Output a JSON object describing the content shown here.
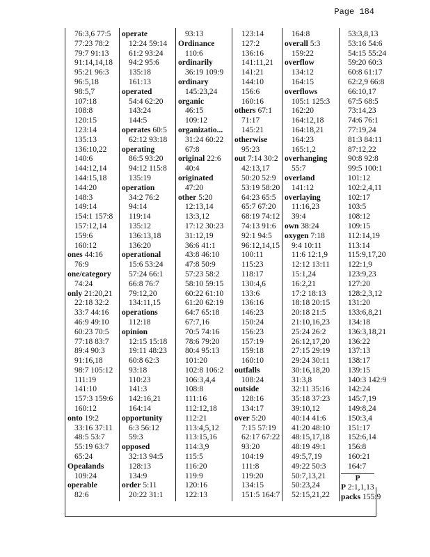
{
  "header": {
    "page": "Page 184"
  },
  "columns": [
    {
      "lines": [
        "76:3,6 77:5",
        "77:23 78:2",
        "79:7 91:13",
        "91:14,14,18",
        "95:21 96:3",
        "96:5,18",
        "98:5,7",
        "107:18",
        "108:8",
        "120:15",
        "123:14",
        "135:13",
        "136:10,22",
        "140:6",
        "144:12,14",
        "144:15,18",
        "144:20",
        "148:3",
        "149:14",
        "154:1 157:8",
        "157:12,14",
        "159:6",
        "160:12",
        {
          "term": "ones",
          "refs": "44:16"
        },
        "76:9",
        {
          "term": "one/category"
        },
        "74:24",
        {
          "term": "only",
          "refs": "21:20,21"
        },
        "22:18 32:2",
        "33:7 44:16",
        "46:9 49:10",
        "60:23 70:5",
        "77:18 83:7",
        "89:4 90:3",
        "91:16,18",
        "98:7 105:12",
        "111:19",
        "141:10",
        "157:3 159:6",
        "160:12",
        {
          "term": "onto",
          "refs": "19:2"
        },
        "33:16 37:11",
        "48:5 53:7",
        "55:19 63:7",
        "65:24",
        {
          "term": "Opealands"
        },
        "109:24",
        {
          "term": "operable"
        },
        "82:6"
      ]
    },
    {
      "lines": [
        {
          "term": "operate"
        },
        "12:24 59:14",
        "61:2 93:24",
        "94:2 95:6",
        "135:18",
        "161:13",
        {
          "term": "operated"
        },
        "54:4 62:20",
        "143:24",
        "144:5",
        {
          "term": "operates",
          "refs": "60:5"
        },
        "62:12 93:18",
        {
          "term": "operating"
        },
        "86:5 93:20",
        "94:12 115:8",
        "135:19",
        {
          "term": "operation"
        },
        "34:2 76:2",
        "94:14",
        "119:14",
        "135:12",
        "136:13,18",
        "136:20",
        {
          "term": "operational"
        },
        "15:6 53:24",
        "57:24 66:1",
        "66:8 76:7",
        "79:12,20",
        "134:11,15",
        {
          "term": "operations"
        },
        "112:18",
        {
          "term": "opinion"
        },
        "12:15 15:18",
        "19:11 48:23",
        "60:8 62:3",
        "93:18",
        "110:23",
        "141:3",
        "142:16,21",
        "164:14",
        {
          "term": "opportunity"
        },
        "6:3 56:12",
        "59:3",
        {
          "term": "opposed"
        },
        "32:13 94:5",
        "128:13",
        "134:9",
        {
          "term": "order",
          "refs": "5:11"
        },
        "20:22 31:1"
      ]
    },
    {
      "lines": [
        "93:13",
        {
          "term": "Ordinance"
        },
        "110:6",
        {
          "term": "ordinarily"
        },
        "36:19 109:9",
        {
          "term": "ordinary"
        },
        "145:23,24",
        {
          "term": "organic"
        },
        "46:15",
        "109:12",
        {
          "term": "organizatio..."
        },
        "31:24 60:22",
        "67:8",
        {
          "term": "original",
          "refs": "22:6"
        },
        "40:4",
        {
          "term": "originated"
        },
        "47:20",
        {
          "term": "other",
          "refs": "5:20"
        },
        "12:13,14",
        "13:3,12",
        "17:12 30:23",
        "31:12,19",
        "36:6 41:1",
        "43:8 46:10",
        "47:8 50:9",
        "57:23 58:2",
        "58:10 59:15",
        "60:22 61:10",
        "61:20 62:19",
        "64:7 65:18",
        "67:7,16",
        "70:5 74:16",
        "78:6 79:20",
        "80:4 95:13",
        "101:20",
        "102:8 106:2",
        "106:3,4,4",
        "108:8",
        "111:16",
        "112:12,18",
        "112:21",
        "113:4,5,12",
        "113:15,16",
        "114:3,9",
        "115:5",
        "116:20",
        "119:9",
        "120:16",
        "122:13"
      ]
    },
    {
      "lines": [
        "123:14",
        "127:2",
        "136:16",
        "141:11,21",
        "141:21",
        "144:10",
        "156:6",
        "160:16",
        {
          "term": "others",
          "refs": "67:1"
        },
        "71:17",
        "145:21",
        {
          "term": "otherwise"
        },
        "95:23",
        {
          "term": "out",
          "refs": "7:14 30:2"
        },
        "42:13,17",
        "50:20 52:9",
        "53:19 58:20",
        "64:23 65:5",
        "65:7 67:20",
        "68:19 74:12",
        "74:13 91:6",
        "92:1 94:5",
        "96:12,14,15",
        "100:11",
        "115:23",
        "118:17",
        "130:4,6",
        "133:6",
        "136:16",
        "146:23",
        "150:24",
        "156:23",
        "157:19",
        "159:18",
        "160:10",
        {
          "term": "outfalls"
        },
        "108:24",
        {
          "term": "outside"
        },
        "128:16",
        "134:17",
        {
          "term": "over",
          "refs": "5:20"
        },
        "7:15 57:19",
        "62:17 67:22",
        "93:20",
        "104:19",
        "111:8",
        "119:20",
        "134:15",
        "151:5 164:7"
      ]
    },
    {
      "lines": [
        "164:8",
        {
          "term": "overall",
          "refs": "5:3"
        },
        "159:22",
        {
          "term": "overflow"
        },
        "134:12",
        "164:15",
        {
          "term": "overflows"
        },
        "105:1 125:3",
        "162:20",
        "164:12,18",
        "164:18,21",
        "164:23",
        "165:1,2",
        {
          "term": "overhanging"
        },
        "55:7",
        {
          "term": "overland"
        },
        "141:12",
        {
          "term": "overlaying"
        },
        "11:16,23",
        "39:4",
        {
          "term": "own",
          "refs": "38:24"
        },
        {
          "term": "oxygen",
          "refs": "7:18"
        },
        "9:4 10:11",
        "11:6 12:1,9",
        "12:12 13:11",
        "15:1,24",
        "16:2,21",
        "17:2 18:13",
        "18:18 20:15",
        "20:18 21:5",
        "21:10,16,23",
        "25:24 26:2",
        "26:12,17,20",
        "27:15 29:19",
        "29:24 30:11",
        "30:16,18,20",
        "31:3,8",
        "32:11 35:16",
        "35:18 37:23",
        "39:10,12",
        "40:14 41:6",
        "41:20 48:10",
        "48:15,17,18",
        "48:19 49:1",
        "49:5,7,19",
        "49:22 50:3",
        "50:7,13,21",
        "50:23,24",
        "52:15,21,22"
      ]
    },
    {
      "lines": [
        "53:3,8,13",
        "53:16 54:6",
        "54:15 55:24",
        "59:20 60:3",
        "60:8 61:17",
        "62:2,9 66:8",
        "66:10,17",
        "67:5 68:5",
        "73:14,23",
        "74:6 76:1",
        "77:19,24",
        "81:3 84:11",
        "87:12,22",
        "90:8 92:8",
        "99:5 100:1",
        "101:12",
        "102:2,4,11",
        "102:17",
        "103:5",
        "108:12",
        "109:15",
        "112:14,19",
        "113:14",
        "115:9,17,20",
        "122:1,9",
        "123:9,23",
        "127:20",
        "128:2,3,12",
        "131:20",
        "133:6,8,21",
        "134:18",
        "136:3,18,21",
        "136:22",
        "137:13",
        "138:17",
        "139:15",
        "140:3 142:9",
        "142:24",
        "145:7,19",
        "149:8,24",
        "150:3,4",
        "151:17",
        "152:6,14",
        "156:8",
        "160:21",
        "164:7",
        {
          "heading": "P"
        },
        {
          "term": "P",
          "refs": "2:1,1,13"
        },
        {
          "term": "packs",
          "refs": "155:9"
        }
      ]
    }
  ]
}
